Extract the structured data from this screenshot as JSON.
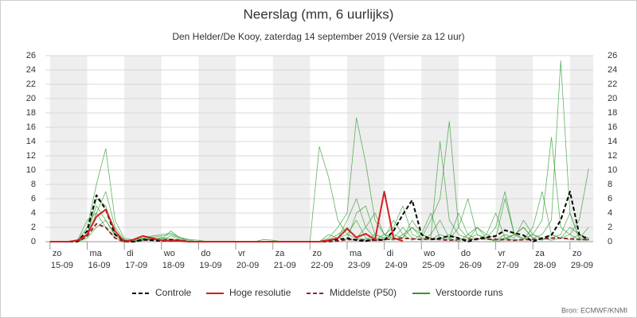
{
  "chart_data": {
    "type": "line",
    "title": "Neerslag (mm, 6 uurlijks)",
    "subtitle": "Den Helder/De Kooy, zaterdag 14 september 2019 (Versie za 12 uur)",
    "source": "Bron: ECMWF/KNMI",
    "categories": [
      [
        "zo",
        "15-09"
      ],
      null,
      null,
      null,
      [
        "ma",
        "16-09"
      ],
      null,
      null,
      null,
      [
        "di",
        "17-09"
      ],
      null,
      null,
      null,
      [
        "wo",
        "18-09"
      ],
      null,
      null,
      null,
      [
        "do",
        "19-09"
      ],
      null,
      null,
      null,
      [
        "vr",
        "20-09"
      ],
      null,
      null,
      null,
      [
        "za",
        "21-09"
      ],
      null,
      null,
      null,
      [
        "zo",
        "22-09"
      ],
      null,
      null,
      null,
      [
        "ma",
        "23-09"
      ],
      null,
      null,
      null,
      [
        "di",
        "24-09"
      ],
      null,
      null,
      null,
      [
        "wo",
        "25-09"
      ],
      null,
      null,
      null,
      [
        "do",
        "26-09"
      ],
      null,
      null,
      null,
      [
        "vr",
        "27-09"
      ],
      null,
      null,
      null,
      [
        "za",
        "28-09"
      ],
      null,
      null,
      null,
      [
        "zo",
        "29-09"
      ],
      null,
      null
    ],
    "ylim": [
      0,
      26
    ],
    "yticks": [
      0,
      2,
      4,
      6,
      8,
      10,
      12,
      14,
      16,
      18,
      20,
      22,
      24,
      26
    ],
    "y2lim": [
      0,
      26
    ],
    "y2ticks": [
      0,
      2,
      4,
      6,
      8,
      10,
      12,
      14,
      16,
      18,
      20,
      22,
      24,
      26
    ],
    "grid": true,
    "day_shading": true,
    "legend": "bottom",
    "series": [
      {
        "name": "Controle",
        "color": "#000000",
        "dash": true,
        "values": [
          0,
          0,
          0,
          0.1,
          1.5,
          6.5,
          4.5,
          1,
          0.1,
          0,
          0.3,
          0.2,
          0.1,
          0.2,
          0.1,
          0,
          0,
          0,
          0,
          0,
          0,
          0,
          0,
          0,
          0,
          0,
          0,
          0,
          0,
          0,
          0.2,
          0.3,
          0.5,
          0.2,
          0.1,
          0.3,
          0.2,
          1.5,
          3.8,
          5.8,
          1,
          0.3,
          0.5,
          0.8,
          0.5,
          0,
          0.4,
          0.6,
          0.8,
          1.6,
          1.2,
          0.9,
          0,
          0.5,
          0.9,
          3,
          7,
          1,
          0.3
        ]
      },
      {
        "name": "Hoge resolutie",
        "color": "#d42020",
        "dash": false,
        "values": [
          0,
          0,
          0,
          0.2,
          1,
          3.5,
          4.5,
          1.5,
          0,
          0.3,
          0.8,
          0.5,
          0.2,
          0.1,
          0.1,
          0,
          0,
          0,
          0,
          0,
          0,
          0,
          0,
          0,
          0,
          0,
          0,
          0,
          0,
          0,
          0.2,
          0.5,
          1.8,
          0.6,
          1.1,
          0.3,
          7,
          0.5,
          0.1,
          null,
          null,
          null,
          null,
          null,
          null,
          null,
          null,
          null,
          null,
          null,
          null,
          null,
          null,
          null,
          null,
          null,
          null,
          null,
          null
        ]
      },
      {
        "name": "Middelste (P50)",
        "color": "#8b2a2a",
        "dash": true,
        "values": [
          0,
          0,
          0,
          0,
          0.8,
          2.5,
          2,
          0.5,
          0,
          0,
          0.2,
          0.3,
          0.2,
          0.3,
          0.2,
          0,
          0,
          0,
          0,
          0,
          0,
          0,
          0,
          0,
          0,
          0,
          0,
          0,
          0,
          0,
          0,
          0.1,
          0.3,
          0.3,
          0.2,
          0.2,
          0.3,
          0.4,
          0.5,
          0.4,
          0.3,
          0.4,
          0.3,
          0.2,
          0.3,
          0.3,
          0.4,
          0.4,
          0.3,
          0.3,
          0.2,
          0.3,
          0.3,
          0.4,
          0.5,
          0.5,
          0.4,
          0.3,
          0.3
        ]
      },
      {
        "name": "Verstoorde runs",
        "color": "#2e9a2e",
        "dash": false,
        "runs": [
          [
            0,
            0,
            0,
            0.2,
            2,
            8,
            13,
            3,
            0.5,
            0.2,
            0.5,
            0.8,
            1,
            1.2,
            0.6,
            0.3,
            0.2,
            0,
            0,
            0,
            0,
            0,
            0,
            0,
            0,
            0,
            0,
            0,
            0,
            0,
            0.5,
            2,
            4,
            17.3,
            11,
            3,
            1,
            0.5,
            2,
            0.5,
            0.2,
            1,
            3,
            0.5,
            0,
            1,
            2,
            0.5,
            0,
            0.3,
            1,
            2,
            0.5,
            0.2,
            1,
            0.5,
            0.3,
            1,
            0.5
          ],
          [
            0,
            0,
            0,
            0,
            1,
            5,
            3,
            1,
            0.3,
            0,
            0.2,
            0.5,
            0.3,
            1.5,
            0.5,
            0,
            0,
            0,
            0,
            0,
            0,
            0,
            0,
            0.3,
            0.2,
            0,
            0,
            0,
            0,
            13.3,
            9,
            3,
            1,
            0.5,
            2,
            4,
            1,
            0.3,
            0.5,
            3,
            1,
            0.5,
            14,
            3,
            1,
            0.5,
            0.2,
            1,
            4,
            0.5,
            0.2,
            0.3,
            1,
            0.5,
            0.2,
            0.5,
            1,
            0.3,
            0.2
          ],
          [
            0,
            0,
            0,
            0.3,
            3,
            4,
            2,
            0.5,
            0,
            0.3,
            0.5,
            0.3,
            0.2,
            0.8,
            0.3,
            0,
            0,
            0,
            0,
            0,
            0,
            0,
            0,
            0,
            0,
            0,
            0,
            0,
            0,
            0,
            0,
            0.5,
            1,
            3,
            0.5,
            0.2,
            1,
            2,
            5,
            1,
            0.5,
            3,
            6,
            16.8,
            2,
            0.5,
            1,
            0.3,
            0.2,
            0.5,
            1,
            2,
            0.5,
            1,
            3,
            25.3,
            4,
            0.5,
            0.3
          ],
          [
            0,
            0,
            0,
            0,
            0.5,
            2,
            3,
            0.8,
            0.2,
            0,
            0.2,
            0.3,
            0.5,
            0.4,
            0.2,
            0,
            0,
            0,
            0,
            0,
            0,
            0,
            0,
            0,
            0,
            0,
            0,
            0,
            0,
            0,
            0.3,
            1,
            2,
            0.5,
            0.3,
            1,
            0.5,
            0.2,
            1,
            2,
            0.5,
            0.3,
            1,
            0.5,
            4,
            1,
            0.3,
            0.5,
            2,
            7,
            1,
            0.5,
            1,
            3,
            14.6,
            2,
            1,
            3,
            10.2
          ],
          [
            0,
            0,
            0,
            0.1,
            1,
            6,
            5,
            1,
            0.2,
            0.1,
            0.3,
            0.6,
            0.8,
            1,
            0.5,
            0.2,
            0,
            0,
            0,
            0,
            0,
            0,
            0,
            0,
            0,
            0,
            0,
            0,
            0,
            0,
            0,
            0.5,
            3,
            6,
            2,
            0.5,
            0.3,
            1,
            0.5,
            2,
            1,
            0.5,
            0.3,
            1,
            0.5,
            0.2,
            2,
            1,
            0.5,
            6,
            1,
            0.3,
            2,
            7,
            1,
            0.5,
            2,
            1,
            0.5
          ],
          [
            0,
            0,
            0,
            0,
            0.8,
            4,
            7,
            2,
            0.3,
            0,
            0.4,
            0.2,
            0.6,
            0.3,
            0.2,
            0,
            0,
            0,
            0,
            0,
            0,
            0,
            0,
            0,
            0,
            0,
            0,
            0,
            0,
            0,
            1,
            0.5,
            0.3,
            4,
            5,
            1,
            0.5,
            3,
            1,
            0.2,
            1,
            4,
            0.5,
            0.3,
            2,
            6,
            1,
            0.5,
            0.2,
            1,
            0.5,
            3,
            1,
            0.3,
            0.5,
            1,
            4,
            0.5,
            2
          ]
        ]
      }
    ]
  }
}
